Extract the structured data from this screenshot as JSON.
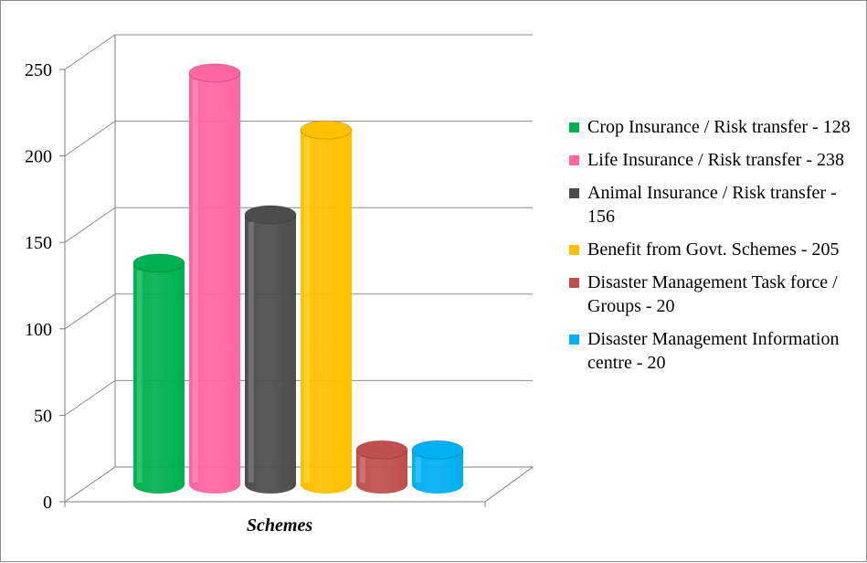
{
  "chart_data": {
    "type": "bar",
    "style": "3d-cylinder",
    "xlabel": "Schemes",
    "ylabel": "",
    "ylim": [
      0,
      250
    ],
    "yticks": [
      0,
      50,
      100,
      150,
      200,
      250
    ],
    "grid": true,
    "legend_position": "right",
    "series": [
      {
        "name": "Crop Insurance / Risk transfer - 128",
        "value": 128,
        "color": "#00b050"
      },
      {
        "name": "Life Insurance / Risk transfer - 238",
        "value": 238,
        "color": "#ff66a3"
      },
      {
        "name": "Animal Insurance / Risk transfer - 156",
        "value": 156,
        "color": "#4d4d4d"
      },
      {
        "name": "Benefit from Govt. Schemes - 205",
        "value": 205,
        "color": "#ffc000"
      },
      {
        "name": "Disaster Management Task force / Groups - 20",
        "value": 20,
        "color": "#c0504d"
      },
      {
        "name": "Disaster Management Information centre - 20",
        "value": 20,
        "color": "#00b0f0"
      }
    ]
  }
}
